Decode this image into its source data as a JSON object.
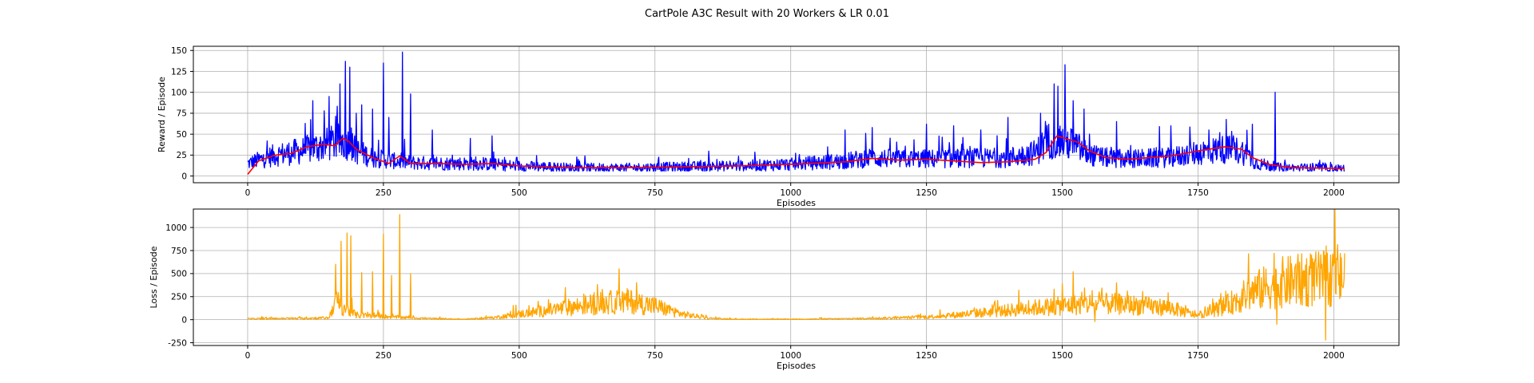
{
  "figure": {
    "title": "CartPole A3C Result with 20 Workers & LR 0.01"
  },
  "chart_data": [
    {
      "type": "line",
      "xlabel": "Episodes",
      "ylabel": "Reward / Episode",
      "xlim": [
        -100,
        2120
      ],
      "ylim": [
        -8,
        155
      ],
      "xticks": [
        0,
        250,
        500,
        750,
        1000,
        1250,
        1500,
        1750,
        2000
      ],
      "yticks": [
        0,
        25,
        50,
        75,
        100,
        125,
        150
      ],
      "grid": true,
      "series": [
        {
          "color": "#0000ff",
          "profile_x": [
            0,
            50,
            100,
            130,
            160,
            180,
            200,
            230,
            270,
            300,
            350,
            400,
            450,
            500,
            600,
            700,
            800,
            900,
            1000,
            1100,
            1150,
            1200,
            1300,
            1400,
            1450,
            1480,
            1500,
            1520,
            1550,
            1600,
            1700,
            1750,
            1800,
            1830,
            1860,
            1900,
            2020
          ],
          "profile_y": [
            15,
            25,
            30,
            35,
            40,
            42,
            30,
            22,
            18,
            16,
            15,
            15,
            14,
            12,
            10,
            10,
            11,
            12,
            14,
            18,
            22,
            20,
            21,
            22,
            28,
            45,
            42,
            38,
            25,
            20,
            22,
            28,
            32,
            30,
            15,
            10,
            9
          ],
          "spikes": [
            [
              120,
              90
            ],
            [
              150,
              95
            ],
            [
              170,
              110
            ],
            [
              180,
              137
            ],
            [
              188,
              130
            ],
            [
              200,
              75
            ],
            [
              210,
              85
            ],
            [
              230,
              80
            ],
            [
              250,
              135
            ],
            [
              260,
              70
            ],
            [
              285,
              148
            ],
            [
              300,
              98
            ],
            [
              340,
              55
            ],
            [
              410,
              45
            ],
            [
              450,
              48
            ],
            [
              1100,
              55
            ],
            [
              1150,
              58
            ],
            [
              1250,
              62
            ],
            [
              1300,
              60
            ],
            [
              1350,
              55
            ],
            [
              1400,
              70
            ],
            [
              1460,
              75
            ],
            [
              1485,
              110
            ],
            [
              1505,
              133
            ],
            [
              1520,
              90
            ],
            [
              1540,
              80
            ],
            [
              1600,
              65
            ],
            [
              1700,
              60
            ],
            [
              1770,
              55
            ],
            [
              1790,
              52
            ],
            [
              1850,
              62
            ],
            [
              1892,
              100
            ]
          ]
        },
        {
          "color": "#ff0000",
          "x": [
            0,
            20,
            50,
            80,
            110,
            140,
            160,
            175,
            185,
            200,
            230,
            260,
            280,
            300,
            350,
            400,
            450,
            500,
            600,
            700,
            800,
            900,
            1000,
            1100,
            1150,
            1200,
            1250,
            1300,
            1350,
            1400,
            1450,
            1470,
            1490,
            1510,
            1530,
            1550,
            1580,
            1620,
            1700,
            1750,
            1800,
            1830,
            1850,
            1880,
            1920,
            2020
          ],
          "y": [
            2,
            18,
            25,
            27,
            35,
            38,
            36,
            45,
            42,
            32,
            22,
            15,
            24,
            15,
            15,
            14,
            15,
            12,
            10,
            10,
            11,
            12,
            14,
            17,
            21,
            19,
            20,
            18,
            16,
            17,
            20,
            28,
            48,
            44,
            40,
            30,
            22,
            20,
            24,
            30,
            35,
            32,
            22,
            14,
            10,
            9
          ]
        }
      ]
    },
    {
      "type": "line",
      "xlabel": "Episodes",
      "ylabel": "Loss / Episode",
      "xlim": [
        -100,
        2120
      ],
      "ylim": [
        -280,
        1200
      ],
      "xticks": [
        0,
        250,
        500,
        750,
        1000,
        1250,
        1500,
        1750,
        2000
      ],
      "yticks": [
        -250,
        0,
        250,
        500,
        750,
        1000
      ],
      "grid": true,
      "series": [
        {
          "color": "#ffa500",
          "profile_x": [
            0,
            100,
            150,
            160,
            200,
            300,
            350,
            400,
            450,
            500,
            550,
            600,
            650,
            700,
            750,
            800,
            850,
            900,
            1000,
            1100,
            1200,
            1250,
            1300,
            1400,
            1450,
            1500,
            1550,
            1600,
            1700,
            1750,
            1800,
            1850,
            1900,
            1950,
            2000,
            2020
          ],
          "profile_y": [
            10,
            15,
            20,
            200,
            50,
            20,
            10,
            5,
            20,
            60,
            100,
            140,
            180,
            200,
            150,
            60,
            15,
            5,
            5,
            10,
            20,
            30,
            50,
            100,
            130,
            150,
            170,
            170,
            130,
            40,
            150,
            300,
            400,
            430,
            450,
            450
          ],
          "spikes": [
            [
              162,
              600
            ],
            [
              172,
              850
            ],
            [
              183,
              940
            ],
            [
              190,
              910
            ],
            [
              210,
              510
            ],
            [
              230,
              520
            ],
            [
              250,
              930
            ],
            [
              265,
              480
            ],
            [
              280,
              1140
            ],
            [
              300,
              500
            ],
            [
              1420,
              320
            ],
            [
              1500,
              390
            ],
            [
              1520,
              520
            ],
            [
              1600,
              400
            ],
            [
              1890,
              720
            ],
            [
              2000,
              700
            ],
            [
              2020,
              720
            ]
          ],
          "dips": [
            [
              1560,
              -20
            ],
            [
              1895,
              -50
            ],
            [
              1985,
              -220
            ]
          ]
        }
      ]
    }
  ]
}
